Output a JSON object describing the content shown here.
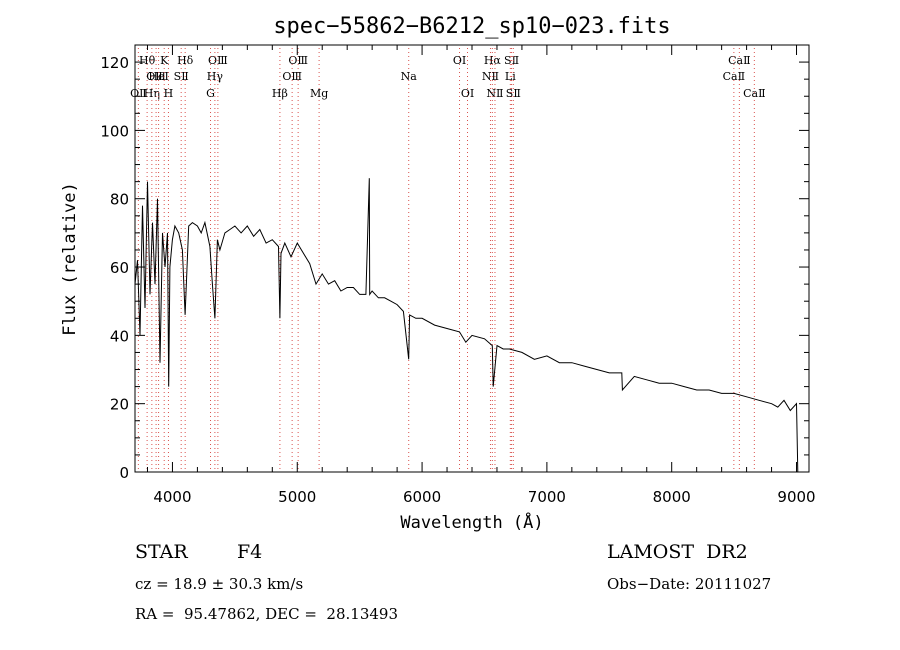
{
  "chart_data": {
    "type": "line",
    "title": "spec−55862−B6212_sp10−023.fits",
    "xlabel": "Wavelength (Å)",
    "ylabel": "Flux (relative)",
    "xlim": [
      3700,
      9100
    ],
    "ylim": [
      0,
      125
    ],
    "x_ticks": [
      4000,
      5000,
      6000,
      7000,
      8000,
      9000
    ],
    "y_ticks": [
      0,
      20,
      40,
      60,
      80,
      100,
      120
    ],
    "grid": false,
    "series": [
      {
        "x": [
          3700,
          3720,
          3740,
          3760,
          3780,
          3800,
          3820,
          3840,
          3860,
          3880,
          3900,
          3920,
          3940,
          3960,
          3970,
          3980,
          4000,
          4020,
          4050,
          4080,
          4101,
          4130,
          4160,
          4200,
          4230,
          4260,
          4300,
          4320,
          4340,
          4360,
          4380,
          4420,
          4460,
          4500,
          4550,
          4600,
          4650,
          4700,
          4750,
          4800,
          4850,
          4861,
          4870,
          4900,
          4950,
          5000,
          5050,
          5100,
          5150,
          5200,
          5250,
          5300,
          5350,
          5400,
          5450,
          5500,
          5550,
          5577,
          5580,
          5600,
          5650,
          5700,
          5750,
          5800,
          5850,
          5893,
          5900,
          5950,
          6000,
          6100,
          6200,
          6300,
          6350,
          6400,
          6500,
          6563,
          6570,
          6600,
          6650,
          6700,
          6800,
          6900,
          7000,
          7100,
          7200,
          7300,
          7400,
          7500,
          7600,
          7605,
          7700,
          7800,
          7900,
          8000,
          8100,
          8200,
          8300,
          8400,
          8500,
          8600,
          8700,
          8800,
          8850,
          8900,
          8950,
          9000,
          9010
        ],
        "y": [
          55,
          62,
          40,
          78,
          48,
          85,
          52,
          73,
          55,
          80,
          32,
          70,
          60,
          70,
          25,
          60,
          68,
          72,
          70,
          65,
          46,
          72,
          73,
          72,
          70,
          73,
          66,
          55,
          45,
          68,
          65,
          70,
          71,
          72,
          70,
          72,
          69,
          71,
          67,
          68,
          66,
          45,
          64,
          67,
          63,
          67,
          64,
          61,
          55,
          58,
          55,
          56,
          53,
          54,
          54,
          52,
          52,
          86,
          52,
          53,
          51,
          51,
          50,
          49,
          47,
          33,
          46,
          45,
          45,
          43,
          42,
          41,
          38,
          40,
          39,
          37,
          25,
          37,
          36,
          36,
          35,
          33,
          34,
          32,
          32,
          31,
          30,
          29,
          29,
          24,
          28,
          27,
          26,
          26,
          25,
          24,
          24,
          23,
          23,
          22,
          21,
          20,
          19,
          21,
          18,
          20,
          0
        ]
      }
    ],
    "line_markers": [
      {
        "label": "OⅡ",
        "wavelength": 3727,
        "row": 3
      },
      {
        "label": "Hθ",
        "wavelength": 3797,
        "row": 1
      },
      {
        "label": "OⅢ",
        "wavelength": 3869,
        "row": 2
      },
      {
        "label": "Hη",
        "wavelength": 3835,
        "row": 3
      },
      {
        "label": "HeⅠ",
        "wavelength": 3889,
        "row": 2
      },
      {
        "label": "K",
        "wavelength": 3934,
        "row": 1
      },
      {
        "label": "H",
        "wavelength": 3968,
        "row": 3
      },
      {
        "label": "SⅡ",
        "wavelength": 4070,
        "row": 2
      },
      {
        "label": "Hδ",
        "wavelength": 4102,
        "row": 1
      },
      {
        "label": "OⅢ",
        "wavelength": 4364,
        "row": 1
      },
      {
        "label": "Hγ",
        "wavelength": 4340,
        "row": 2
      },
      {
        "label": "G",
        "wavelength": 4305,
        "row": 3
      },
      {
        "label": "Hβ",
        "wavelength": 4861,
        "row": 3
      },
      {
        "label": "OⅢ",
        "wavelength": 5007,
        "row": 1
      },
      {
        "label": "OⅢ",
        "wavelength": 4959,
        "row": 2
      },
      {
        "label": "Mg",
        "wavelength": 5175,
        "row": 3
      },
      {
        "label": "Na",
        "wavelength": 5893,
        "row": 2
      },
      {
        "label": "OⅠ",
        "wavelength": 6300,
        "row": 1
      },
      {
        "label": "OⅠ",
        "wavelength": 6364,
        "row": 3
      },
      {
        "label": "Hα",
        "wavelength": 6563,
        "row": 1
      },
      {
        "label": "NⅡ",
        "wavelength": 6548,
        "row": 2
      },
      {
        "label": "NⅡ",
        "wavelength": 6584,
        "row": 3
      },
      {
        "label": "SⅡ",
        "wavelength": 6717,
        "row": 1
      },
      {
        "label": "Li",
        "wavelength": 6707,
        "row": 2
      },
      {
        "label": "SⅡ",
        "wavelength": 6731,
        "row": 3
      },
      {
        "label": "CaⅡ",
        "wavelength": 8542,
        "row": 1
      },
      {
        "label": "CaⅡ",
        "wavelength": 8498,
        "row": 2
      },
      {
        "label": "CaⅡ",
        "wavelength": 8662,
        "row": 3
      }
    ],
    "colors": {
      "spectrum": "#000000",
      "marker_line": "#d9534f",
      "axis": "#000000"
    }
  },
  "info": {
    "object_class": "STAR",
    "subclass": "F4",
    "survey": "LAMOST  DR2",
    "redshift_line": "cz = 18.9 ± 30.3 km/s",
    "obs_date": "Obs−Date: 20111027",
    "coords_line": "RA =  95.47862, DEC =  28.13493"
  }
}
